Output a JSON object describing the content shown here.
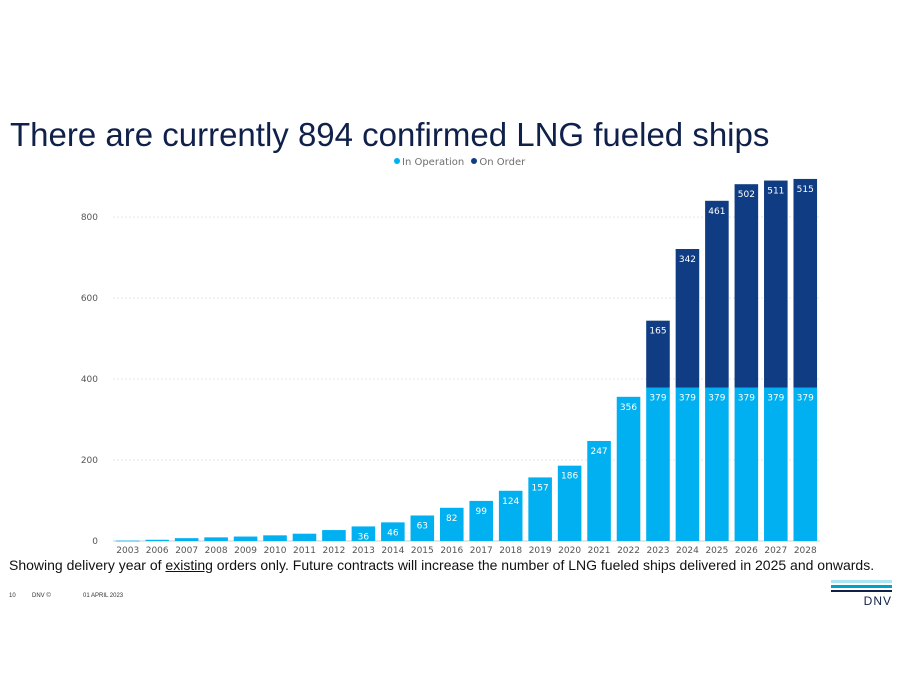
{
  "slide": {
    "title": "There are currently 894 confirmed LNG fueled ships",
    "note_prefix": "Showing delivery year of ",
    "note_underlined": "existing",
    "note_suffix": " orders only. Future contracts will increase the number of LNG fueled ships delivered in 2025 and onwards.",
    "footer_page": "10",
    "footer_brand": "DNV ©",
    "footer_date": "01 APRIL 2023",
    "logo_text": "DNV"
  },
  "colors": {
    "in_operation": "#00b0f0",
    "on_order": "#0f3c82",
    "title": "#0f204b",
    "logo_light": "#aee3f0",
    "logo_mid": "#00a0c8",
    "logo_dark": "#0f204b"
  },
  "chart_data": {
    "type": "bar",
    "stacked": true,
    "legend_position": "top",
    "categories": [
      "2003",
      "2006",
      "2007",
      "2008",
      "2009",
      "2010",
      "2011",
      "2012",
      "2013",
      "2014",
      "2015",
      "2016",
      "2017",
      "2018",
      "2019",
      "2020",
      "2021",
      "2022",
      "2023",
      "2024",
      "2025",
      "2026",
      "2027",
      "2028"
    ],
    "series": [
      {
        "name": "In Operation",
        "color": "#00b0f0",
        "values": [
          1,
          3,
          7,
          9,
          11,
          14,
          18,
          27,
          36,
          46,
          63,
          82,
          99,
          124,
          157,
          186,
          247,
          356,
          379,
          379,
          379,
          379,
          379,
          379
        ],
        "labels": [
          "",
          "",
          "",
          "",
          "",
          "",
          "",
          "",
          "36",
          "46",
          "63",
          "82",
          "99",
          "124",
          "157",
          "186",
          "247",
          "356",
          "379",
          "379",
          "379",
          "379",
          "379",
          "379"
        ]
      },
      {
        "name": "On Order",
        "color": "#0f3c82",
        "values": [
          0,
          0,
          0,
          0,
          0,
          0,
          0,
          0,
          0,
          0,
          0,
          0,
          0,
          0,
          0,
          0,
          0,
          0,
          165,
          342,
          461,
          502,
          511,
          515
        ],
        "labels": [
          "",
          "",
          "",
          "",
          "",
          "",
          "",
          "",
          "",
          "",
          "",
          "",
          "",
          "",
          "",
          "",
          "",
          "",
          "165",
          "342",
          "461",
          "502",
          "511",
          "515"
        ]
      }
    ],
    "ylim": [
      0,
      900
    ],
    "yticks": [
      0,
      200,
      400,
      600,
      800
    ],
    "grid": true
  }
}
